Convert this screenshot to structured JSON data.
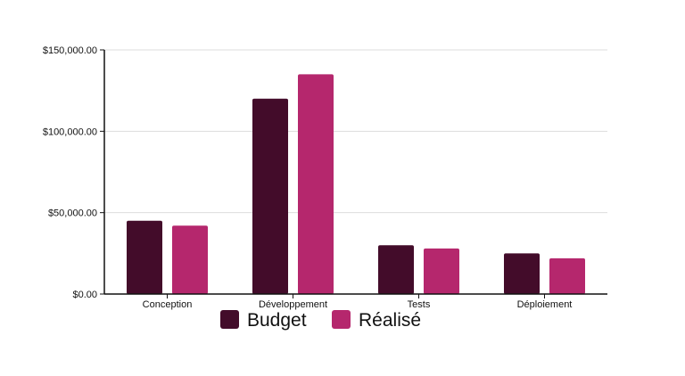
{
  "chart_data": {
    "type": "bar",
    "title": "",
    "xlabel": "",
    "ylabel": "",
    "categories": [
      "Conception",
      "Développement",
      "Tests",
      "Déploiement"
    ],
    "series": [
      {
        "name": "Budget",
        "values": [
          45000,
          120000,
          30000,
          25000
        ],
        "color": "#430c2a"
      },
      {
        "name": "Réalisé",
        "values": [
          42000,
          135000,
          28000,
          22000
        ],
        "color": "#b5276d"
      }
    ],
    "ylim": [
      0,
      150000
    ],
    "yticks": [
      0,
      50000,
      100000,
      150000
    ],
    "ytick_labels": [
      "$0.00",
      "$50,000.00",
      "$100,000.00",
      "$150,000.00"
    ],
    "grid": true,
    "gridline_color": "#dddddd",
    "legend_position": "bottom"
  }
}
